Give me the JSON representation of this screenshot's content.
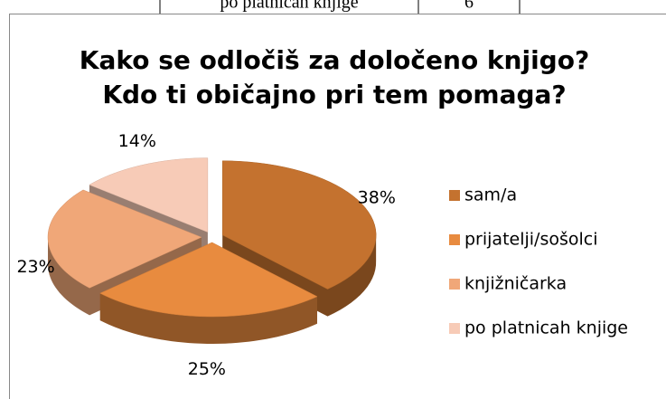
{
  "table": {
    "rows": [
      [
        "po platnicah knjige",
        "6"
      ]
    ]
  },
  "chart_data": {
    "type": "pie",
    "title": [
      "Kako se odločiš za določeno knjigo?",
      "Kdo ti običajno pri tem pomaga?"
    ],
    "categories": [
      "sam/a",
      "prijatelji/sošolci",
      "knjižničarka",
      "po platnicah knjige"
    ],
    "values": [
      38,
      25,
      23,
      14
    ],
    "value_labels": [
      "38%",
      "25%",
      "23%",
      "14%"
    ],
    "colors": [
      "#c4722f",
      "#e88b3f",
      "#f0a778",
      "#f7cbb7"
    ],
    "legend": "right"
  }
}
